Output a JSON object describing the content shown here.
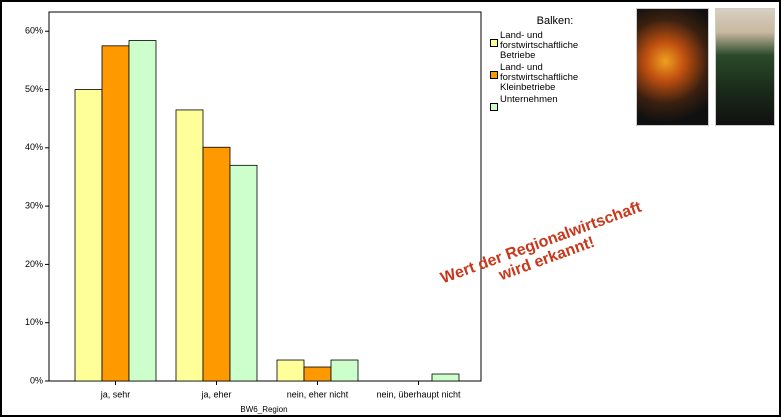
{
  "chart_data": {
    "type": "bar",
    "categories": [
      "ja, sehr",
      "ja, eher",
      "nein, eher nicht",
      "nein, überhaupt nicht"
    ],
    "series": [
      {
        "name": "Land- und forstwirtschaftliche Betriebe",
        "color": "#ffff99",
        "values": [
          50,
          46.5,
          3.6,
          0
        ]
      },
      {
        "name": "Land- und forstwirtschaftliche Kleinbetriebe",
        "color": "#ff9900",
        "values": [
          57.5,
          40.1,
          2.4,
          0
        ]
      },
      {
        "name": "Unternehmen",
        "color": "#ccffcc",
        "values": [
          58.4,
          37,
          3.6,
          1.2
        ]
      }
    ],
    "x_label": "BW6_Region",
    "legend_title": "Balken:",
    "ylim": [
      0,
      63.3
    ],
    "yticks": [
      {
        "value": 0,
        "label": "0%"
      },
      {
        "value": 10,
        "label": "10%"
      },
      {
        "value": 20,
        "label": "20%"
      },
      {
        "value": 30,
        "label": "30%"
      },
      {
        "value": 40,
        "label": "40%"
      },
      {
        "value": 50,
        "label": "50%"
      },
      {
        "value": 60,
        "label": "60%"
      }
    ],
    "annotation": [
      "Wert der Regionalwirtschaft",
      "wird erkannt!"
    ]
  }
}
